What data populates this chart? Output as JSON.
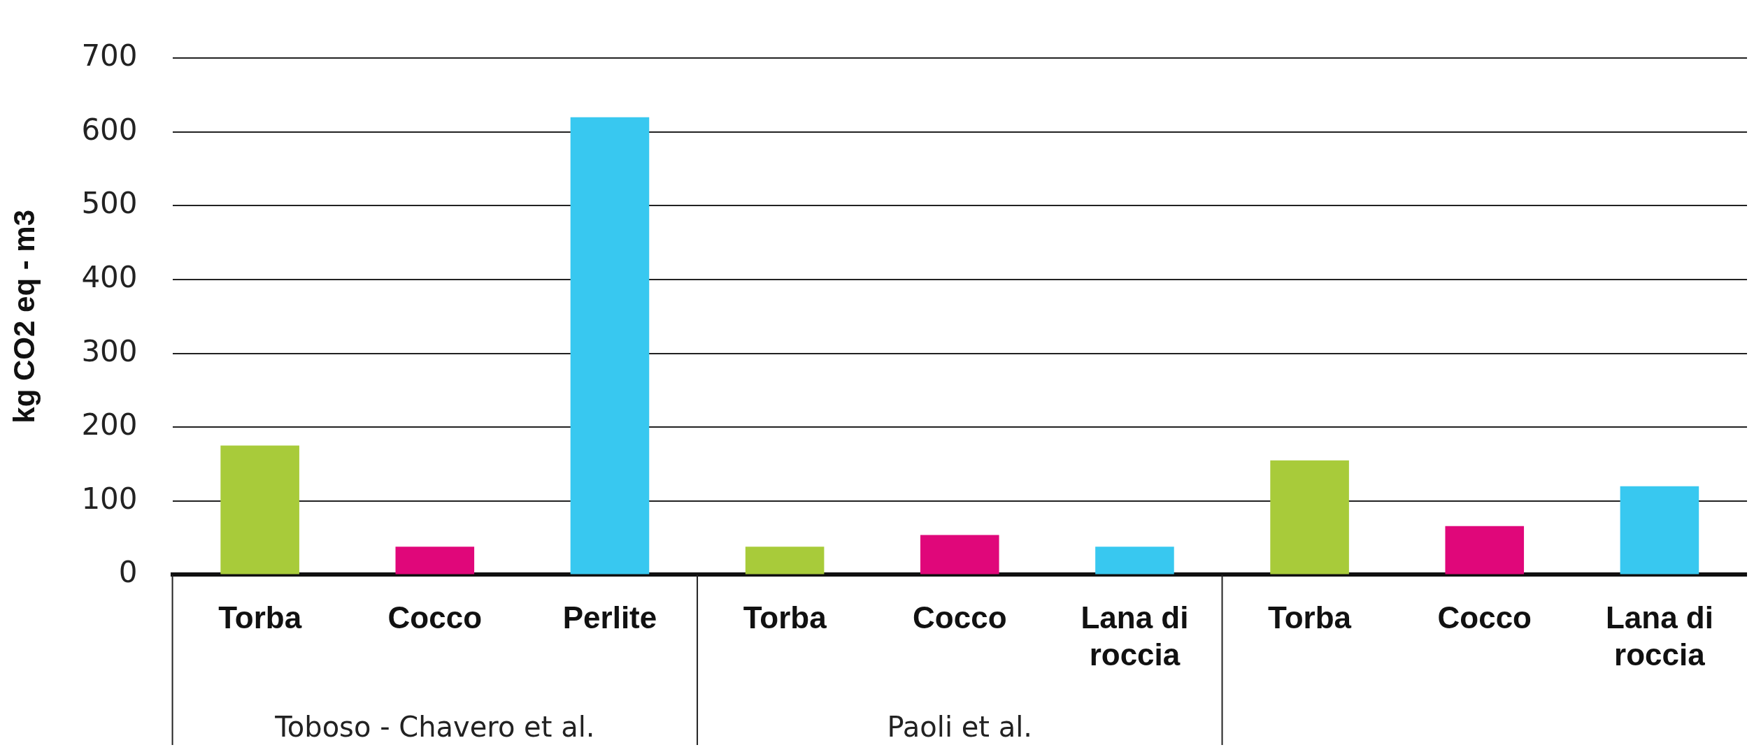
{
  "chart_data": {
    "type": "bar",
    "ylabel": "kg CO2 eq - m3",
    "categories": [
      "Torba",
      "Cocco",
      "Perlite",
      "Torba",
      "Cocco",
      "Lana di roccia",
      "Torba",
      "Cocco",
      "Lana di roccia"
    ],
    "values": [
      175,
      38,
      620,
      38,
      54,
      38,
      155,
      66,
      120
    ],
    "colors": [
      "#a8cb3a",
      "#e0077a",
      "#38c8f0",
      "#a8cb3a",
      "#e0077a",
      "#38c8f0",
      "#a8cb3a",
      "#e0077a",
      "#38c8f0"
    ],
    "ylim": [
      0,
      700
    ],
    "yticks": [
      0,
      100,
      200,
      300,
      400,
      500,
      600,
      700
    ],
    "grid": "y",
    "legend": false,
    "annotations": [
      "Toboso - Chavero et al.",
      "Paoli et al."
    ]
  }
}
